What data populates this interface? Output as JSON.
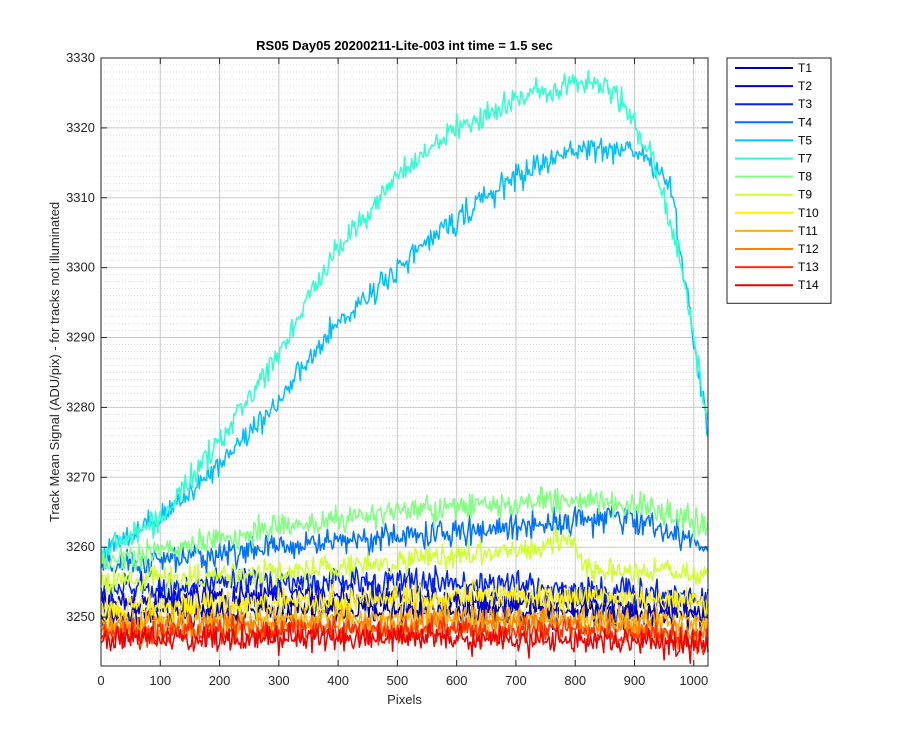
{
  "chart_data": {
    "type": "line",
    "title": "RS05 Day05 20200211-Lite-003 int time = 1.5 sec",
    "xlabel": "Pixels",
    "ylabel": "Track Mean Signal (ADU/pix) - for tracks not illuminated",
    "xlim": [
      0,
      1024
    ],
    "ylim": [
      3243,
      3330
    ],
    "xticks": [
      0,
      100,
      200,
      300,
      400,
      500,
      600,
      700,
      800,
      900,
      1000
    ],
    "yticks": [
      3250,
      3260,
      3270,
      3280,
      3290,
      3300,
      3310,
      3320,
      3330
    ],
    "grid": true,
    "minor_grid_y": true,
    "legend_position": "outside-top-right",
    "series": [
      {
        "name": "T1",
        "color": "#00008f",
        "noise": 1.6,
        "points": [
          [
            0,
            3250
          ],
          [
            300,
            3251
          ],
          [
            600,
            3251
          ],
          [
            800,
            3251
          ],
          [
            1024,
            3250
          ]
        ]
      },
      {
        "name": "T2",
        "color": "#0000d6",
        "noise": 1.6,
        "points": [
          [
            0,
            3252
          ],
          [
            300,
            3253
          ],
          [
            600,
            3252.5
          ],
          [
            800,
            3252
          ],
          [
            1024,
            3251
          ]
        ]
      },
      {
        "name": "T3",
        "color": "#0020ff",
        "noise": 1.6,
        "points": [
          [
            0,
            3254
          ],
          [
            300,
            3255
          ],
          [
            600,
            3255
          ],
          [
            800,
            3254
          ],
          [
            1024,
            3253
          ]
        ]
      },
      {
        "name": "T4",
        "color": "#0070ff",
        "noise": 1.5,
        "points": [
          [
            0,
            3257
          ],
          [
            200,
            3259
          ],
          [
            400,
            3261
          ],
          [
            600,
            3262
          ],
          [
            800,
            3264
          ],
          [
            900,
            3264
          ],
          [
            1024,
            3260
          ]
        ]
      },
      {
        "name": "T5",
        "color": "#00bfff",
        "noise": 1.4,
        "points": [
          [
            0,
            3259
          ],
          [
            100,
            3264
          ],
          [
            200,
            3272
          ],
          [
            300,
            3281
          ],
          [
            400,
            3292
          ],
          [
            500,
            3300
          ],
          [
            600,
            3307
          ],
          [
            700,
            3313
          ],
          [
            800,
            3317
          ],
          [
            900,
            3317
          ],
          [
            960,
            3312
          ],
          [
            1000,
            3290
          ],
          [
            1024,
            3276
          ]
        ]
      },
      {
        "name": "T7",
        "color": "#30ffcf",
        "noise": 1.4,
        "points": [
          [
            0,
            3259
          ],
          [
            100,
            3264
          ],
          [
            200,
            3275
          ],
          [
            300,
            3288
          ],
          [
            400,
            3303
          ],
          [
            500,
            3313
          ],
          [
            600,
            3320
          ],
          [
            700,
            3324
          ],
          [
            800,
            3327
          ],
          [
            870,
            3325
          ],
          [
            930,
            3316
          ],
          [
            980,
            3300
          ],
          [
            1024,
            3278
          ]
        ]
      },
      {
        "name": "T8",
        "color": "#80ff80",
        "noise": 1.5,
        "points": [
          [
            0,
            3258
          ],
          [
            200,
            3261
          ],
          [
            300,
            3263
          ],
          [
            500,
            3265
          ],
          [
            700,
            3266
          ],
          [
            800,
            3267
          ],
          [
            900,
            3266
          ],
          [
            1024,
            3263
          ]
        ]
      },
      {
        "name": "T9",
        "color": "#cfff30",
        "noise": 1.4,
        "points": [
          [
            0,
            3255
          ],
          [
            200,
            3256
          ],
          [
            400,
            3257
          ],
          [
            600,
            3259
          ],
          [
            750,
            3260
          ],
          [
            790,
            3261
          ],
          [
            820,
            3257
          ],
          [
            1024,
            3256
          ]
        ]
      },
      {
        "name": "T10",
        "color": "#ffef00",
        "noise": 1.5,
        "points": [
          [
            0,
            3251
          ],
          [
            300,
            3252
          ],
          [
            600,
            3253
          ],
          [
            800,
            3253
          ],
          [
            1024,
            3252
          ]
        ]
      },
      {
        "name": "T11",
        "color": "#ffb000",
        "noise": 1.5,
        "points": [
          [
            0,
            3249
          ],
          [
            300,
            3249.5
          ],
          [
            600,
            3250
          ],
          [
            800,
            3250
          ],
          [
            1024,
            3249
          ]
        ]
      },
      {
        "name": "T12",
        "color": "#ff8000",
        "noise": 1.5,
        "points": [
          [
            0,
            3248
          ],
          [
            300,
            3248.5
          ],
          [
            600,
            3249
          ],
          [
            800,
            3249
          ],
          [
            1024,
            3247.5
          ]
        ]
      },
      {
        "name": "T13",
        "color": "#ff3000",
        "noise": 1.5,
        "points": [
          [
            0,
            3247.5
          ],
          [
            300,
            3248
          ],
          [
            600,
            3248
          ],
          [
            800,
            3248
          ],
          [
            1024,
            3246.5
          ]
        ]
      },
      {
        "name": "T14",
        "color": "#ee0000",
        "noise": 1.5,
        "points": [
          [
            0,
            3247
          ],
          [
            300,
            3247
          ],
          [
            600,
            3247
          ],
          [
            800,
            3246.5
          ],
          [
            1024,
            3246
          ]
        ]
      }
    ]
  }
}
